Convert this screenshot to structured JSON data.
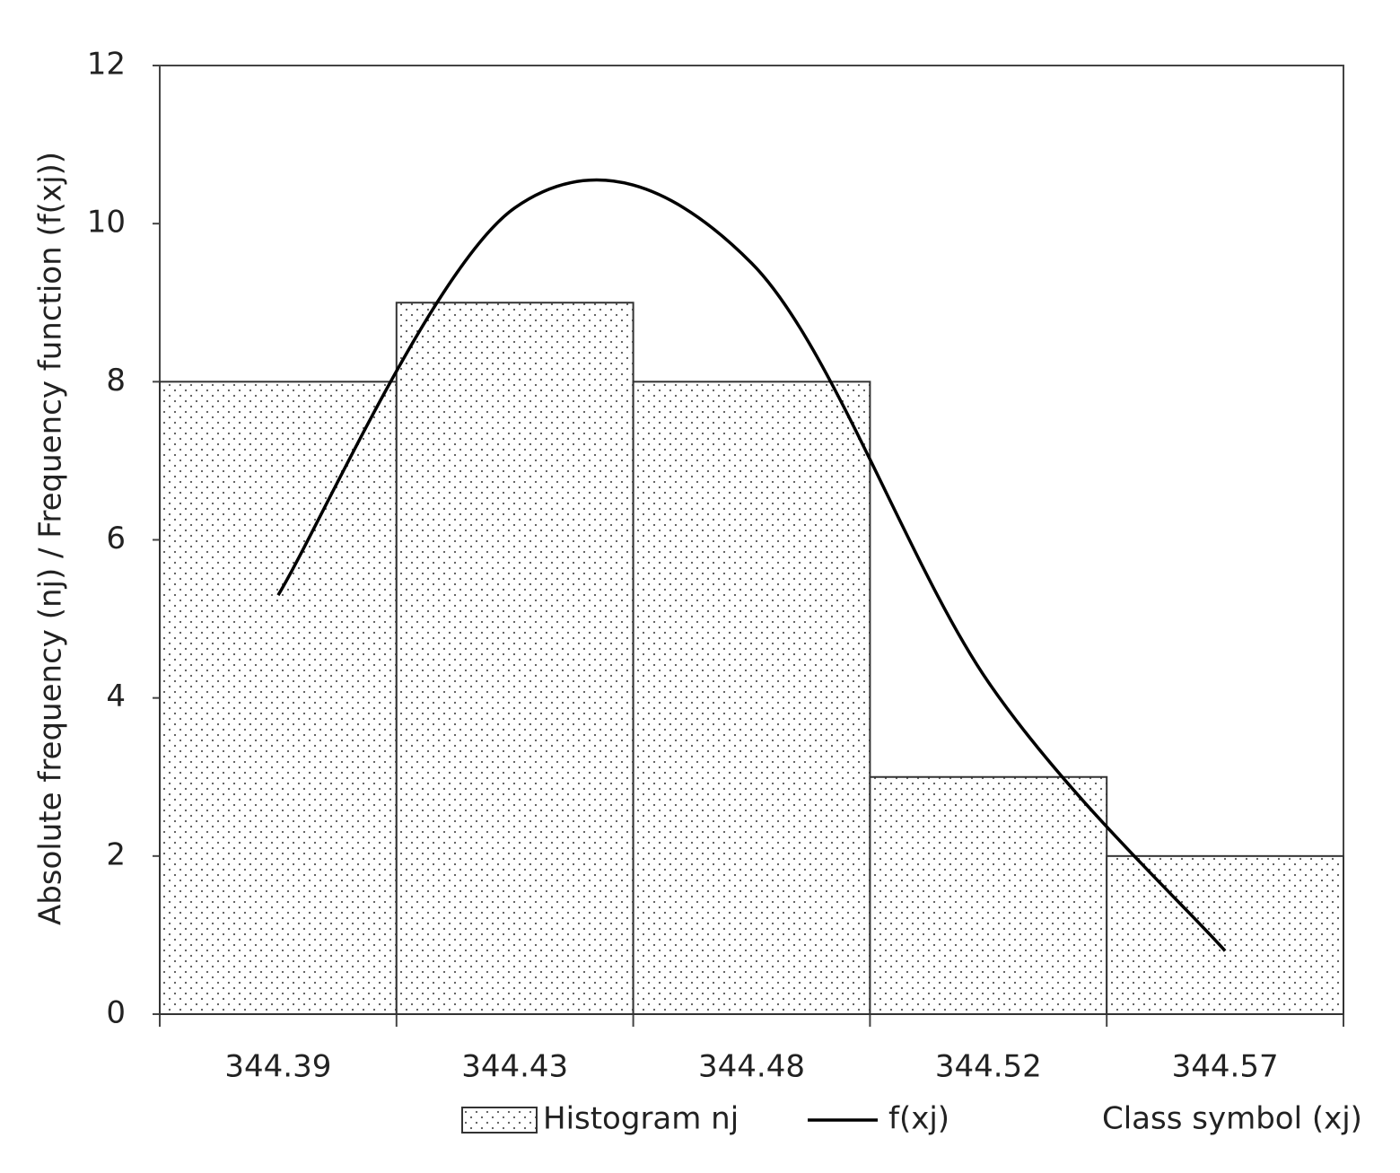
{
  "chart_data": {
    "type": "bar",
    "y_label": "Absolute frequency (nj) / Frequency function (f(xj))",
    "x_label": "Class symbol (xj)",
    "categories": [
      "344.39",
      "344.43",
      "344.48",
      "344.52",
      "344.57"
    ],
    "series": [
      {
        "name": "Histogram nj",
        "type": "bar",
        "color": "#333333",
        "values": [
          8,
          9,
          8,
          3,
          2
        ]
      },
      {
        "name": "f(xj)",
        "type": "line",
        "color": "#000000",
        "values": [
          5.3,
          10.2,
          9.5,
          4.2,
          0.8
        ]
      }
    ],
    "ylim": [
      0,
      12
    ],
    "yticks": [
      0,
      2,
      4,
      6,
      8,
      10,
      12
    ],
    "grid": false,
    "legend": "bottom"
  }
}
